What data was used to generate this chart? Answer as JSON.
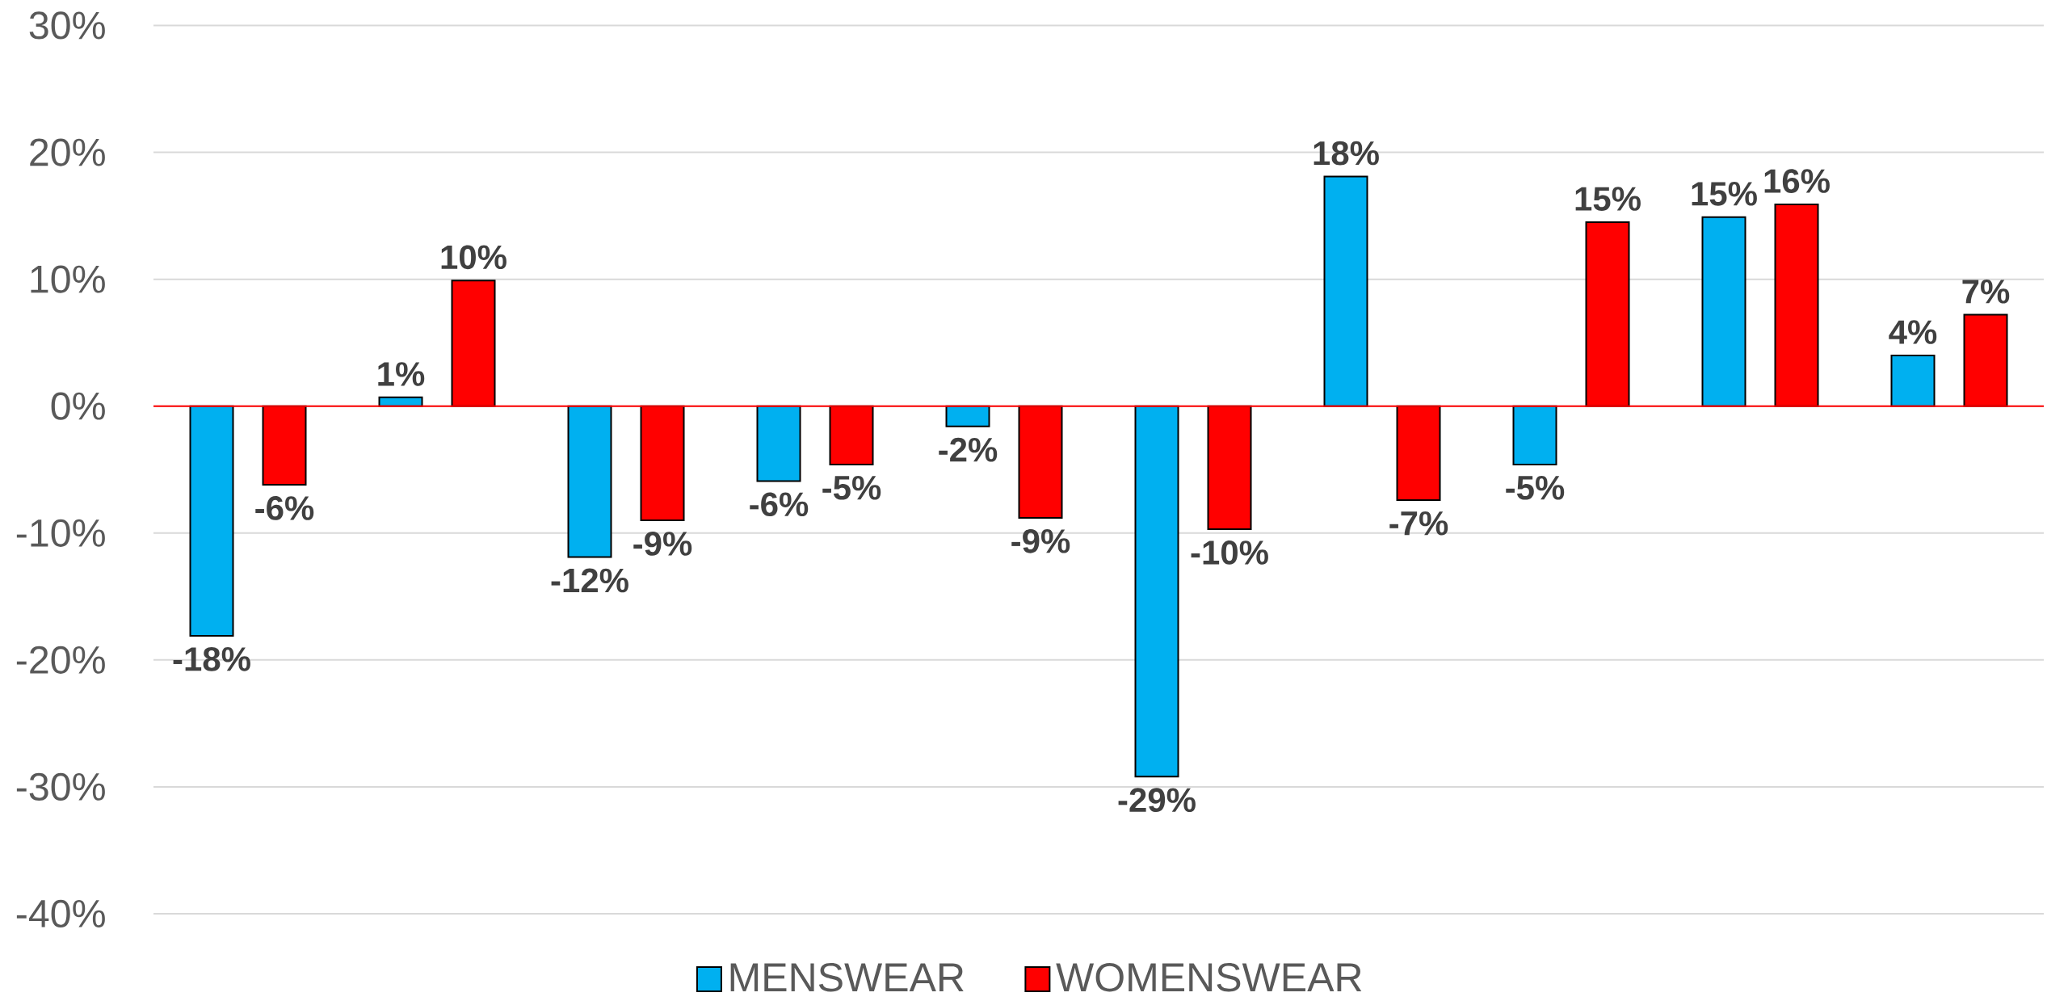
{
  "chart_data": {
    "type": "bar",
    "categories": [
      null,
      null,
      null,
      null,
      null,
      null,
      null,
      null,
      null,
      null
    ],
    "series": [
      {
        "name": "MENSWEAR",
        "color": "#00b0f0",
        "values": [
          -18.1,
          0.7,
          -11.9,
          -5.9,
          -1.6,
          -29.2,
          18.1,
          -4.6,
          14.9,
          4.0
        ],
        "value_labels": [
          "-18%",
          "1%",
          "-12%",
          "-6%",
          "-2%",
          "-29%",
          "18%",
          "-5%",
          "15%",
          "4%"
        ]
      },
      {
        "name": "WOMENSWEAR",
        "color": "#ff0000",
        "values": [
          -6.2,
          9.9,
          -9.0,
          -4.6,
          -8.8,
          -9.7,
          -7.4,
          14.5,
          15.9,
          7.2
        ],
        "value_labels": [
          "-6%",
          "10%",
          "-9%",
          "-5%",
          "-9%",
          "-10%",
          "-7%",
          "15%",
          "16%",
          "7%"
        ]
      }
    ],
    "ylim": [
      -40,
      30
    ],
    "yticks": [
      {
        "value": -40,
        "label": "-40%"
      },
      {
        "value": -30,
        "label": "-30%"
      },
      {
        "value": -20,
        "label": "-20%"
      },
      {
        "value": -10,
        "label": "-10%"
      },
      {
        "value": 0,
        "label": "0%"
      },
      {
        "value": 10,
        "label": "10%"
      },
      {
        "value": 20,
        "label": "20%"
      },
      {
        "value": 30,
        "label": "30%"
      }
    ],
    "grid": "y",
    "legend": "bottom",
    "ref_lines": [
      {
        "axis": "y",
        "value": 0,
        "color": "#ff0000"
      }
    ]
  }
}
